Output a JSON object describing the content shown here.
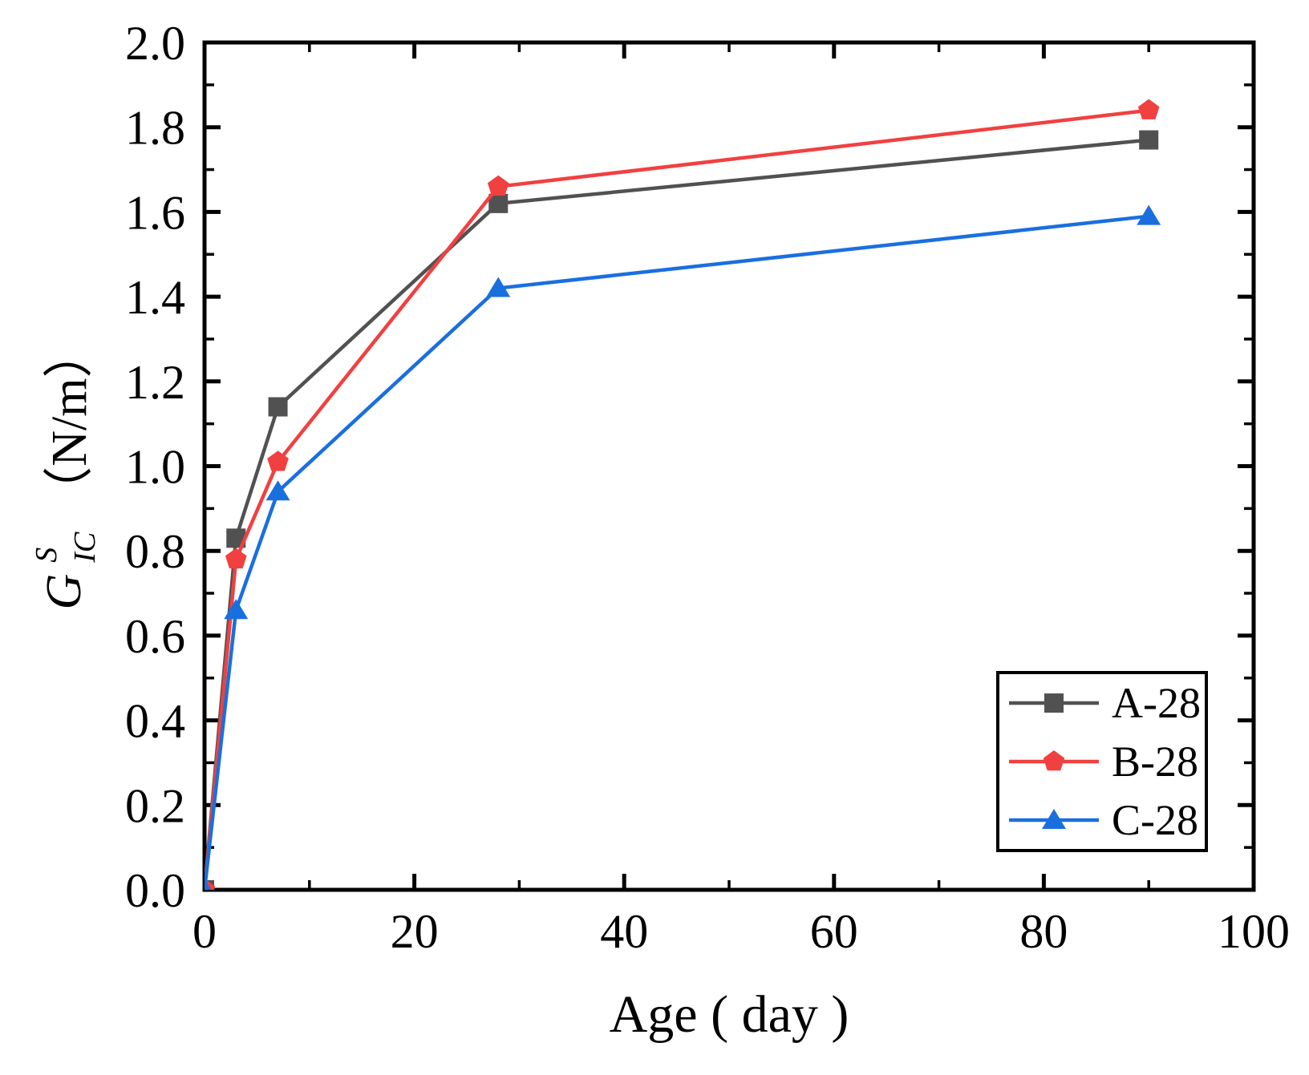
{
  "chart_data": {
    "type": "line",
    "title": "",
    "xlabel": "Age ( day )",
    "ylabel": {
      "symbol": "G",
      "sup": "S",
      "sub": "IC",
      "unit": "（N/m）"
    },
    "xlim": [
      0,
      100
    ],
    "ylim": [
      0.0,
      2.0
    ],
    "xticks": [
      0,
      20,
      40,
      60,
      80,
      100
    ],
    "xtick_labels": [
      "0",
      "20",
      "40",
      "60",
      "80",
      "100"
    ],
    "xticks_minor": [
      10,
      30,
      50,
      70,
      90
    ],
    "yticks": [
      0.0,
      0.2,
      0.4,
      0.6,
      0.8,
      1.0,
      1.2,
      1.4,
      1.6,
      1.8,
      2.0
    ],
    "ytick_labels": [
      "0.0",
      "0.2",
      "0.4",
      "0.6",
      "0.8",
      "1.0",
      "1.2",
      "1.4",
      "1.6",
      "1.8",
      "2.0"
    ],
    "yticks_minor": [
      0.1,
      0.3,
      0.5,
      0.7,
      0.9,
      1.1,
      1.3,
      1.5,
      1.7,
      1.9
    ],
    "grid": false,
    "axis_color": "#000000",
    "background": "#ffffff",
    "legend": {
      "position": "lower-right"
    },
    "series": [
      {
        "name": "A-28",
        "color": "#515151",
        "marker": "square",
        "points": [
          [
            0,
            0.0
          ],
          [
            3,
            0.83
          ],
          [
            7,
            1.14
          ],
          [
            28,
            1.62
          ],
          [
            90,
            1.77
          ]
        ]
      },
      {
        "name": "B-28",
        "color": "#F14040",
        "marker": "pentagon",
        "points": [
          [
            0,
            0.0
          ],
          [
            3,
            0.78
          ],
          [
            7,
            1.01
          ],
          [
            28,
            1.66
          ],
          [
            90,
            1.84
          ]
        ]
      },
      {
        "name": "C-28",
        "color": "#1A6FDF",
        "marker": "triangle-up",
        "points": [
          [
            0,
            0.0
          ],
          [
            3,
            0.66
          ],
          [
            7,
            0.94
          ],
          [
            28,
            1.42
          ],
          [
            90,
            1.59
          ]
        ]
      }
    ]
  }
}
